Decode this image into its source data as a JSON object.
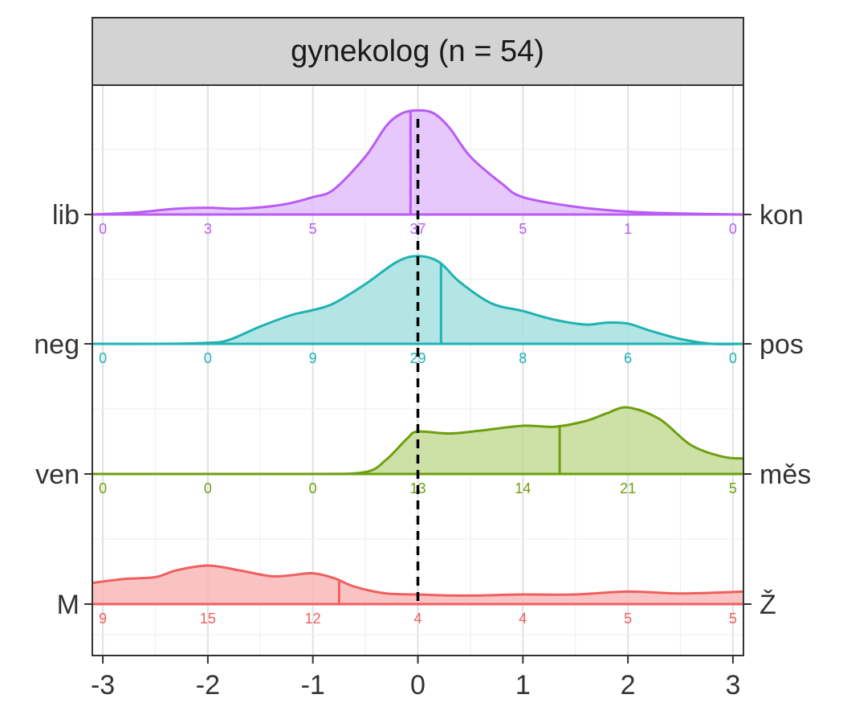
{
  "chart_data": {
    "type": "ridgeline",
    "title": "gynekolog (n = 54)",
    "xlabel": "",
    "ylabel": "",
    "xlim": [
      -3.1,
      3.1
    ],
    "x_ticks": [
      "-3",
      "-2",
      "-1",
      "0",
      "1",
      "2",
      "3"
    ],
    "x_tick_values": [
      -3,
      -2,
      -1,
      0,
      1,
      2,
      3
    ],
    "reference_line_x": 0,
    "count_positions": [
      -3,
      -2,
      -1,
      0,
      1,
      2,
      3
    ],
    "grid": true,
    "series": [
      {
        "left_label": "M",
        "right_label": "Ž",
        "color": "#F05F5F",
        "fill": "#F8B9B9",
        "counts": [
          9,
          15,
          12,
          4,
          4,
          5,
          5
        ],
        "mean": -0.75,
        "density_x": [
          -3.1,
          -2.8,
          -2.5,
          -2.3,
          -2.0,
          -1.7,
          -1.4,
          -1.2,
          -1.0,
          -0.8,
          -0.6,
          -0.3,
          0.0,
          0.3,
          0.6,
          1.0,
          1.5,
          2.0,
          2.5,
          3.1
        ],
        "density_y": [
          0.22,
          0.26,
          0.28,
          0.35,
          0.4,
          0.35,
          0.29,
          0.3,
          0.32,
          0.27,
          0.18,
          0.11,
          0.1,
          0.09,
          0.09,
          0.1,
          0.1,
          0.13,
          0.11,
          0.13
        ]
      },
      {
        "left_label": "ven",
        "right_label": "měs",
        "color": "#6E9F0E",
        "fill": "#C4DB96",
        "counts": [
          0,
          0,
          0,
          13,
          14,
          21,
          5
        ],
        "mean": 1.35,
        "density_x": [
          -3.1,
          -2.0,
          -1.0,
          -0.5,
          -0.3,
          -0.1,
          0.0,
          0.3,
          0.6,
          1.0,
          1.3,
          1.6,
          1.8,
          2.0,
          2.3,
          2.6,
          2.9,
          3.1
        ],
        "density_y": [
          0.0,
          0.0,
          0.0,
          0.02,
          0.15,
          0.37,
          0.44,
          0.42,
          0.45,
          0.5,
          0.49,
          0.55,
          0.63,
          0.69,
          0.57,
          0.3,
          0.18,
          0.16
        ]
      },
      {
        "left_label": "neg",
        "right_label": "pos",
        "color": "#1FB2B2",
        "fill": "#A6E0E0",
        "counts": [
          0,
          0,
          9,
          29,
          8,
          6,
          0
        ],
        "mean": 0.22,
        "density_x": [
          -3.1,
          -2.5,
          -2.0,
          -1.8,
          -1.5,
          -1.2,
          -1.0,
          -0.8,
          -0.5,
          -0.2,
          0.0,
          0.2,
          0.4,
          0.7,
          1.0,
          1.3,
          1.6,
          1.8,
          2.0,
          2.2,
          2.5,
          2.8,
          3.1
        ],
        "density_y": [
          0.0,
          0.0,
          0.01,
          0.04,
          0.18,
          0.3,
          0.35,
          0.42,
          0.62,
          0.85,
          0.91,
          0.85,
          0.64,
          0.42,
          0.34,
          0.25,
          0.2,
          0.22,
          0.21,
          0.14,
          0.05,
          0.0,
          0.0
        ]
      },
      {
        "left_label": "lib",
        "right_label": "kon",
        "color": "#B95CF5",
        "fill": "#E3BEFC",
        "counts": [
          0,
          3,
          5,
          37,
          5,
          1,
          0
        ],
        "mean": -0.07,
        "density_x": [
          -3.1,
          -2.7,
          -2.3,
          -2.0,
          -1.7,
          -1.3,
          -1.0,
          -0.8,
          -0.5,
          -0.3,
          -0.15,
          0.0,
          0.15,
          0.3,
          0.5,
          0.8,
          1.0,
          1.5,
          2.0,
          2.5,
          3.1
        ],
        "density_y": [
          0.0,
          0.02,
          0.06,
          0.07,
          0.06,
          0.1,
          0.18,
          0.26,
          0.6,
          0.92,
          1.05,
          1.08,
          1.05,
          0.9,
          0.6,
          0.32,
          0.18,
          0.08,
          0.03,
          0.01,
          0.0
        ]
      }
    ]
  }
}
